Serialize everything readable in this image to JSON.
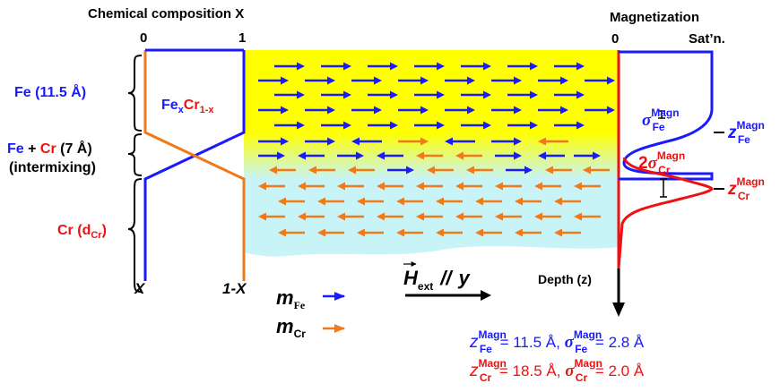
{
  "left_panel": {
    "header": "Chemical composition X",
    "axis_zero": "0",
    "axis_one": "1",
    "label_x": "X",
    "label_one_minus_x": "1-X",
    "formula": {
      "fe": "Fe",
      "x": "x",
      "cr": "Cr",
      "one_minus_x": "1-x"
    }
  },
  "layers": [
    {
      "name": "fe",
      "element": "Fe",
      "detail": "(11.5 Å)"
    },
    {
      "name": "intermix",
      "element_a": "Fe",
      "plus": " + ",
      "element_b": "Cr",
      "thickness": " (7 Å)",
      "note": "(intermixing)"
    },
    {
      "name": "cr",
      "element": "Cr",
      "paren_open": "(d",
      "sub": "Cr",
      "paren_close": ")"
    }
  ],
  "magnetization": {
    "header": "Magnetization",
    "axis_zero": "0",
    "axis_sat": "Sat’n.",
    "sigma_fe": {
      "symbol": "σ",
      "sup": "Magn",
      "sub": "Fe"
    },
    "two_sigma_cr": {
      "factor": "2",
      "symbol": "σ",
      "sup": "Magn",
      "sub": "Cr"
    },
    "z_fe": {
      "prefix": "–",
      "symbol": "z",
      "sup": "Magn",
      "sub": "Fe"
    },
    "z_cr": {
      "prefix": "–",
      "symbol": "z",
      "sup": "Magn",
      "sub": "Cr"
    },
    "depth_label": "Depth (z)"
  },
  "field": {
    "symbol": "H",
    "sub": "ext",
    "parallel": "//",
    "axis": "y"
  },
  "legend": {
    "m_symbol": "m",
    "fe_sub": "Fe",
    "cr_sub": "Cr"
  },
  "equations": [
    {
      "z_sym": "z",
      "sup": "Magn",
      "sub": "Fe",
      "z_val": " = 11.5 Å,",
      "s_sym": "σ",
      "s_sup": "Magn",
      "s_sub": "Fe",
      "s_val": " = 2.8 Å",
      "color": "#1a1aff"
    },
    {
      "z_sym": "z",
      "sup": "Magn",
      "sub": "Cr",
      "z_val": " = 18.5 Å,",
      "s_sym": "σ",
      "s_sup": "Magn",
      "s_sub": "Cr",
      "s_val": " = 2.0 Å",
      "color": "#ee1111"
    }
  ],
  "colors": {
    "fe": "#1a1aff",
    "cr": "#ee1111",
    "orange": "#f07a1a",
    "yellow": "#ffff00",
    "cyan": "#c8f4f8",
    "red_line": "#ee1111"
  }
}
